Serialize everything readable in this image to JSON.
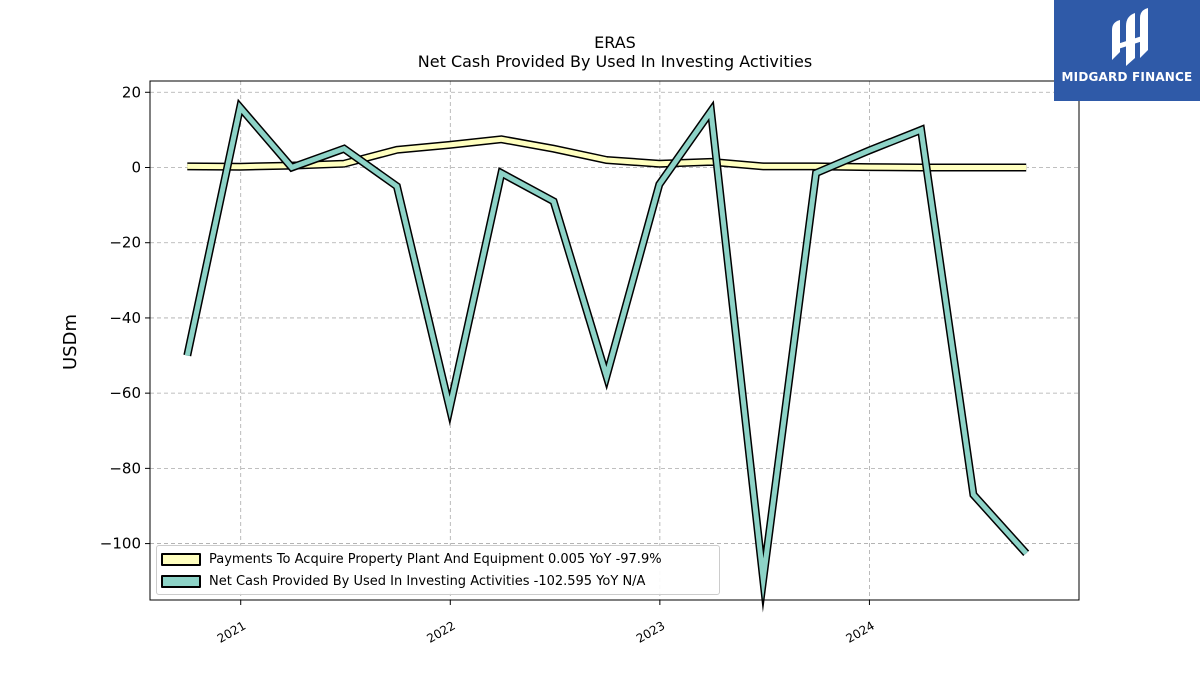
{
  "header": {
    "ticker": "ERAS",
    "subtitle": "Net Cash Provided By Used In Investing Activities"
  },
  "logo": {
    "text": "MIDGARD FINANCE",
    "bg_color": "#2f5aa8"
  },
  "chart_data": {
    "type": "line",
    "title": "ERAS",
    "subtitle": "Net Cash Provided By Used In Investing Activities",
    "ylabel": "USDm",
    "xlabel": "",
    "ylim": [
      -115,
      23
    ],
    "xlim": [
      "2020-07-27",
      "2024-12-31"
    ],
    "yticks": [
      20,
      0,
      -20,
      -40,
      -60,
      -80,
      -100
    ],
    "ytick_labels": [
      "20",
      "0",
      "−20",
      "−40",
      "−60",
      "−80",
      "−100"
    ],
    "xticks": [
      "2021-01-01",
      "2022-01-01",
      "2023-01-01",
      "2024-01-01"
    ],
    "xtick_labels": [
      "2021",
      "2022",
      "2023",
      "2024"
    ],
    "grid": true,
    "legend_position": "lower-left",
    "series": [
      {
        "name": "Payments To Acquire Property Plant And Equipment",
        "legend_label": "Payments To Acquire Property Plant And Equipment  0.005 YoY -97.9%",
        "color": "#ffffbf",
        "x": [
          "2020-09-30",
          "2020-12-31",
          "2021-03-31",
          "2021-06-30",
          "2021-09-30",
          "2021-12-31",
          "2022-03-31",
          "2022-06-30",
          "2022-09-30",
          "2022-12-31",
          "2023-03-31",
          "2023-06-30",
          "2023-09-30",
          "2023-12-31",
          "2024-03-31",
          "2024-06-30",
          "2024-09-30"
        ],
        "values": [
          0.3,
          0.2,
          0.5,
          1.0,
          4.7,
          6.0,
          7.5,
          5.0,
          2.0,
          1.0,
          1.5,
          0.3,
          0.3,
          0.1,
          0.0,
          0.0,
          0.005
        ]
      },
      {
        "name": "Net Cash Provided By Used In Investing Activities",
        "legend_label": "Net Cash Provided By Used In Investing Activities  -102.595 YoY N/A",
        "color": "#8dd3c7",
        "x": [
          "2020-09-30",
          "2020-12-31",
          "2021-03-31",
          "2021-06-30",
          "2021-09-30",
          "2021-12-31",
          "2022-03-31",
          "2022-06-30",
          "2022-09-30",
          "2022-12-31",
          "2023-03-31",
          "2023-06-30",
          "2023-09-30",
          "2023-12-31",
          "2024-03-31",
          "2024-06-30",
          "2024-09-30"
        ],
        "values": [
          -50.0,
          16.0,
          0.0,
          5.0,
          -5.0,
          -64.0,
          -1.5,
          -9.0,
          -55.5,
          -4.5,
          15.0,
          -109.5,
          -1.5,
          4.5,
          10.0,
          -87.0,
          -102.595
        ]
      }
    ]
  }
}
